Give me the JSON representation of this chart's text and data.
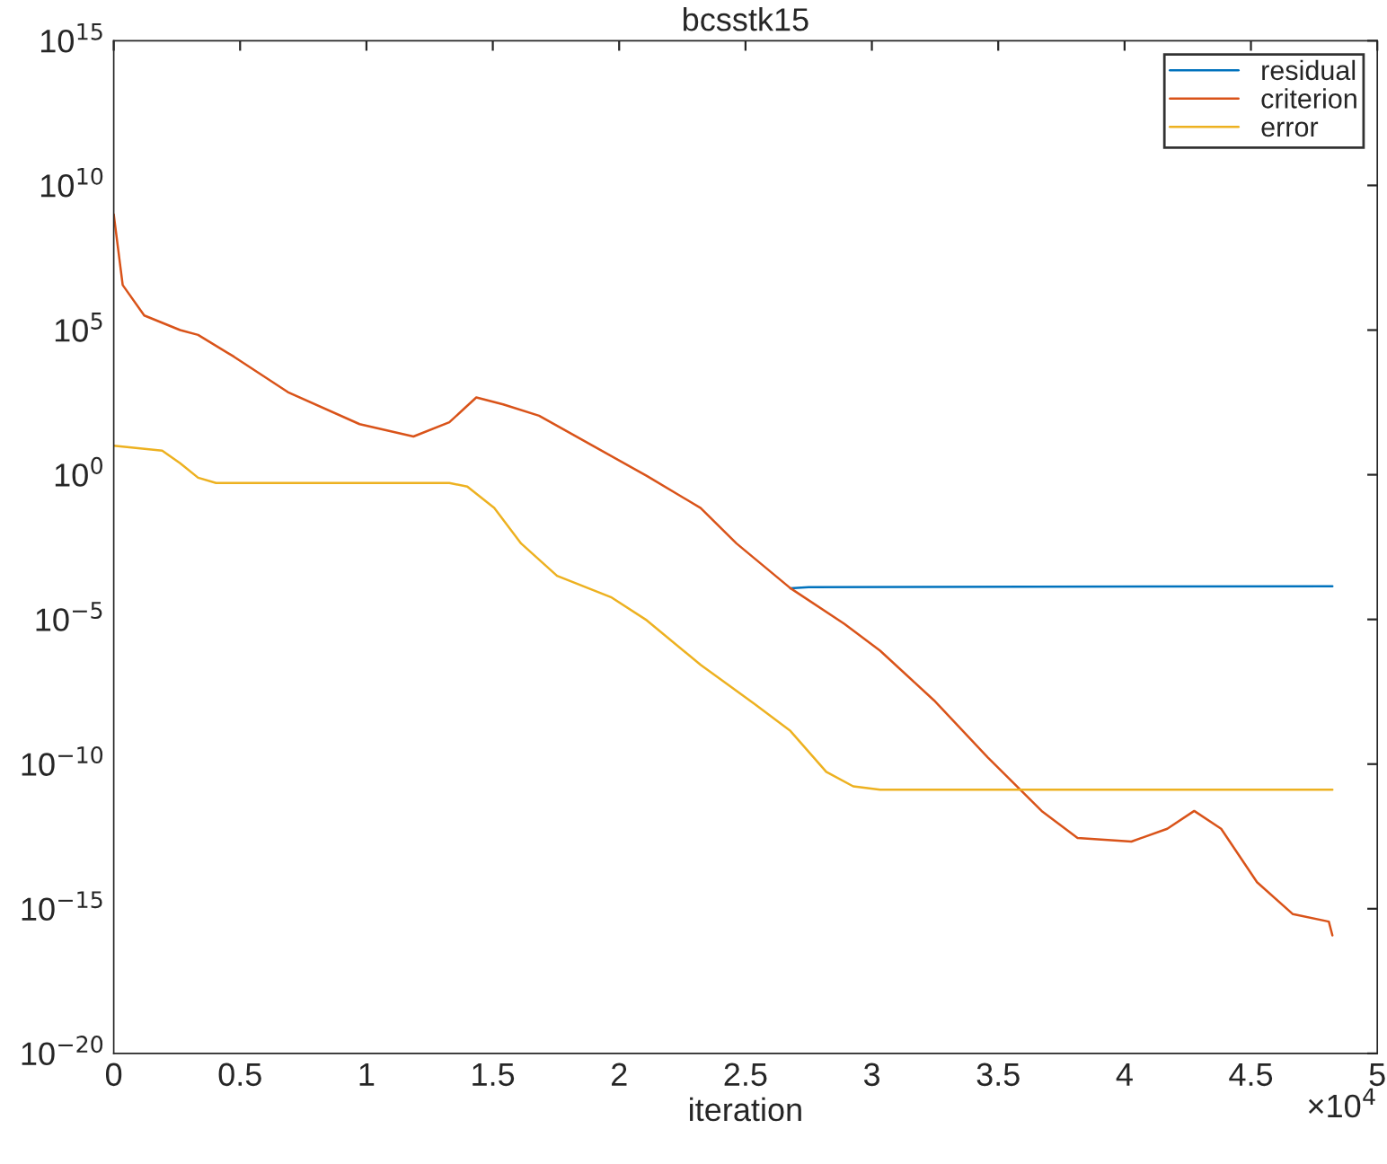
{
  "chart_data": {
    "type": "line",
    "title": "bcsstk15",
    "xlabel": "iteration",
    "log": "y",
    "legend": "top right",
    "grid": false,
    "xlim": [
      0,
      5
    ],
    "xticks": [
      0,
      0.5,
      1,
      1.5,
      2,
      2.5,
      3,
      3.5,
      4,
      4.5,
      5
    ],
    "ylim": [
      1e-20,
      1000000000000000.0
    ],
    "yticks": [
      {
        "value": 1e-20,
        "label": "10$^{−20}$"
      },
      {
        "value": 1e-15,
        "label": "10$^{−15}$"
      },
      {
        "value": 1e-10,
        "label": "10$^{−10}$"
      },
      {
        "value": 1e-05,
        "label": "10$^{−5}$"
      },
      {
        "value": 1,
        "label": "10$^{0}$"
      },
      {
        "value": 100000.0,
        "label": "10$^{5}$"
      },
      {
        "value": 10000000000.0,
        "label": "10$^{10}$"
      },
      {
        "value": 1000000000000000.0,
        "label": "10$^{15}$"
      }
    ],
    "annotations": [
      "×10$^{4}$"
    ],
    "series": [
      {
        "name": "residual",
        "color": "#0072bd",
        "x": [
          2.6776,
          2.75,
          4.8224
        ],
        "values": [
          0.00012,
          0.00013,
          0.00014
        ]
      },
      {
        "name": "criterion",
        "color": "#d95319",
        "x": [
          0,
          0.0355,
          0.1207,
          0.2628,
          0.3338,
          0.4759,
          0.6889,
          0.973,
          1.1861,
          1.3281,
          1.4347,
          1.5412,
          1.6832,
          1.8963,
          2.1094,
          2.3224,
          2.4645,
          2.6776,
          2.8906,
          3.0327,
          3.2457,
          3.4588,
          3.6719,
          3.8139,
          4.027,
          4.169,
          4.2756,
          4.3821,
          4.5241,
          4.6662,
          4.8082,
          4.8224
        ],
        "values": [
          1000000000.0,
          3600000.0,
          320000.0,
          100000.0,
          68000.0,
          12000.0,
          720,
          56,
          21,
          65,
          470,
          270,
          110,
          10,
          0.91,
          0.071,
          0.0042,
          0.00012,
          7.1e-06,
          8.3e-07,
          1.6e-08,
          1.7e-10,
          2.4e-12,
          2.8e-13,
          2.1e-13,
          5.8e-13,
          2.4e-12,
          5.8e-13,
          8.3e-15,
          6.5e-16,
          3.6e-16,
          1.2e-16
        ]
      },
      {
        "name": "error",
        "color": "#edb120",
        "x": [
          0,
          0.1918,
          0.2628,
          0.3338,
          0.4048,
          0.973,
          1.3281,
          1.3991,
          1.5057,
          1.6122,
          1.7543,
          1.9673,
          2.1094,
          2.3224,
          2.5355,
          2.6776,
          2.8196,
          2.9261,
          3.0327,
          4.8224
        ],
        "values": [
          10,
          6.8,
          2.5,
          0.79,
          0.52,
          0.52,
          0.52,
          0.39,
          0.071,
          0.0042,
          0.00032,
          5.9e-05,
          9.3e-06,
          2.7e-07,
          1.2e-08,
          1.4e-09,
          5.4e-11,
          1.7e-11,
          1.3e-11,
          1.3e-11
        ]
      }
    ]
  }
}
